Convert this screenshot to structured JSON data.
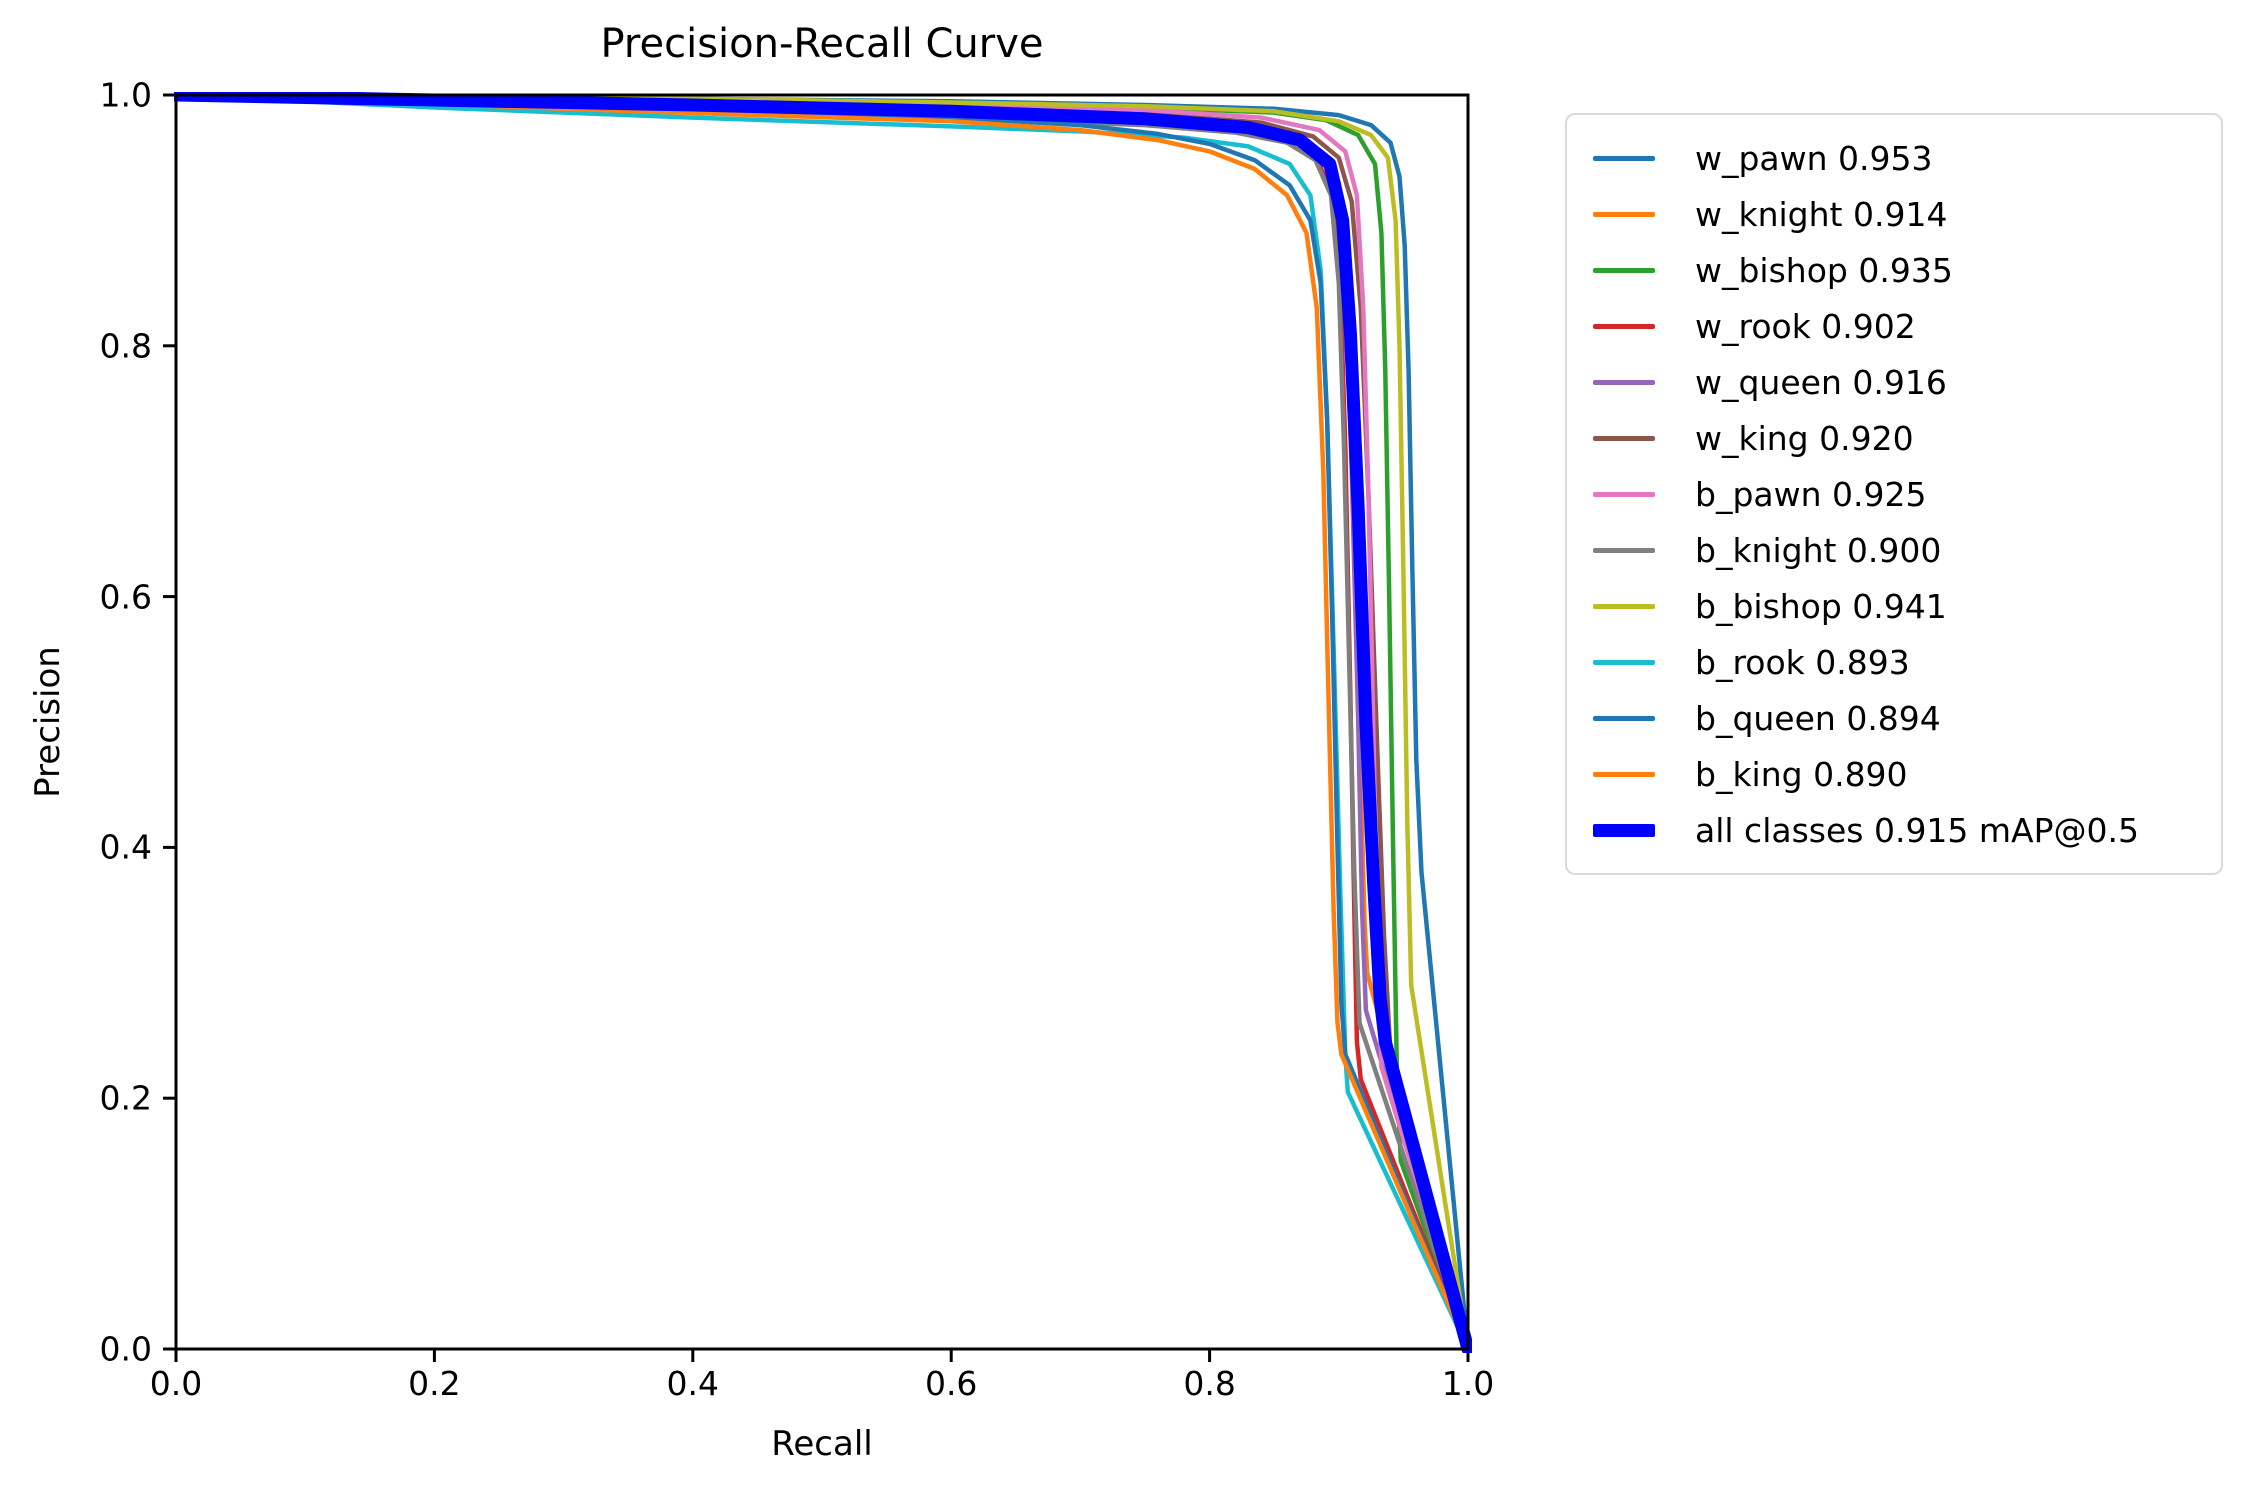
{
  "chart_data": {
    "type": "line",
    "title": "Precision-Recall Curve",
    "xlabel": "Recall",
    "ylabel": "Precision",
    "xlim": [
      0.0,
      1.0
    ],
    "ylim": [
      0.0,
      1.0
    ],
    "xticks": [
      "0.0",
      "0.2",
      "0.4",
      "0.6",
      "0.8",
      "1.0"
    ],
    "yticks": [
      "0.0",
      "0.2",
      "0.4",
      "0.6",
      "0.8",
      "1.0"
    ],
    "grid": false,
    "legend_position": "outside-right",
    "mean_ap_summary": "all classes 0.915 mAP@0.5",
    "series": [
      {
        "name": "w_pawn",
        "ap": 0.953,
        "label": "w_pawn 0.953",
        "color": "#1f77b4",
        "linewidth": 4.5,
        "points": [
          [
            0,
            1
          ],
          [
            0.2,
            0.999
          ],
          [
            0.4,
            0.997
          ],
          [
            0.6,
            0.995
          ],
          [
            0.75,
            0.992
          ],
          [
            0.85,
            0.989
          ],
          [
            0.9,
            0.984
          ],
          [
            0.925,
            0.976
          ],
          [
            0.94,
            0.962
          ],
          [
            0.947,
            0.935
          ],
          [
            0.951,
            0.88
          ],
          [
            0.954,
            0.78
          ],
          [
            0.957,
            0.62
          ],
          [
            0.96,
            0.47
          ],
          [
            0.964,
            0.38
          ],
          [
            1,
            0
          ]
        ]
      },
      {
        "name": "w_knight",
        "ap": 0.914,
        "label": "w_knight 0.914",
        "color": "#ff7f0e",
        "linewidth": 4.5,
        "points": [
          [
            0,
            1
          ],
          [
            0.2,
            0.995
          ],
          [
            0.4,
            0.99
          ],
          [
            0.6,
            0.985
          ],
          [
            0.75,
            0.98
          ],
          [
            0.82,
            0.975
          ],
          [
            0.86,
            0.968
          ],
          [
            0.885,
            0.955
          ],
          [
            0.9,
            0.93
          ],
          [
            0.906,
            0.88
          ],
          [
            0.91,
            0.78
          ],
          [
            0.914,
            0.62
          ],
          [
            0.917,
            0.45
          ],
          [
            0.92,
            0.34
          ],
          [
            0.922,
            0.3
          ],
          [
            1,
            0
          ]
        ]
      },
      {
        "name": "w_bishop",
        "ap": 0.935,
        "label": "w_bishop 0.935",
        "color": "#2ca02c",
        "linewidth": 4.5,
        "points": [
          [
            0,
            1
          ],
          [
            0.2,
            0.998
          ],
          [
            0.4,
            0.996
          ],
          [
            0.6,
            0.993
          ],
          [
            0.75,
            0.99
          ],
          [
            0.85,
            0.986
          ],
          [
            0.89,
            0.98
          ],
          [
            0.915,
            0.968
          ],
          [
            0.928,
            0.945
          ],
          [
            0.933,
            0.89
          ],
          [
            0.936,
            0.78
          ],
          [
            0.939,
            0.6
          ],
          [
            0.942,
            0.4
          ],
          [
            0.945,
            0.22
          ],
          [
            0.948,
            0.15
          ],
          [
            1,
            0
          ]
        ]
      },
      {
        "name": "w_rook",
        "ap": 0.902,
        "label": "w_rook 0.902",
        "color": "#d62728",
        "linewidth": 4.5,
        "points": [
          [
            0,
            1
          ],
          [
            0.2,
            0.996
          ],
          [
            0.4,
            0.991
          ],
          [
            0.6,
            0.986
          ],
          [
            0.75,
            0.981
          ],
          [
            0.82,
            0.975
          ],
          [
            0.86,
            0.967
          ],
          [
            0.882,
            0.952
          ],
          [
            0.895,
            0.92
          ],
          [
            0.901,
            0.85
          ],
          [
            0.905,
            0.72
          ],
          [
            0.909,
            0.52
          ],
          [
            0.912,
            0.35
          ],
          [
            0.914,
            0.245
          ],
          [
            0.917,
            0.215
          ],
          [
            1,
            0
          ]
        ]
      },
      {
        "name": "w_queen",
        "ap": 0.916,
        "label": "w_queen 0.916",
        "color": "#9467bd",
        "linewidth": 4.5,
        "points": [
          [
            0,
            1
          ],
          [
            0.2,
            0.997
          ],
          [
            0.4,
            0.993
          ],
          [
            0.6,
            0.988
          ],
          [
            0.75,
            0.983
          ],
          [
            0.83,
            0.976
          ],
          [
            0.87,
            0.965
          ],
          [
            0.89,
            0.95
          ],
          [
            0.9,
            0.915
          ],
          [
            0.906,
            0.83
          ],
          [
            0.91,
            0.7
          ],
          [
            0.915,
            0.5
          ],
          [
            0.918,
            0.35
          ],
          [
            0.921,
            0.27
          ],
          [
            1,
            0
          ]
        ]
      },
      {
        "name": "w_king",
        "ap": 0.92,
        "label": "w_king 0.920",
        "color": "#8c564b",
        "linewidth": 4.5,
        "points": [
          [
            0,
            1
          ],
          [
            0.2,
            0.997
          ],
          [
            0.4,
            0.994
          ],
          [
            0.6,
            0.99
          ],
          [
            0.75,
            0.985
          ],
          [
            0.84,
            0.978
          ],
          [
            0.88,
            0.967
          ],
          [
            0.9,
            0.95
          ],
          [
            0.91,
            0.915
          ],
          [
            0.917,
            0.83
          ],
          [
            0.923,
            0.68
          ],
          [
            0.929,
            0.5
          ],
          [
            0.935,
            0.33
          ],
          [
            0.94,
            0.235
          ],
          [
            1,
            0
          ]
        ]
      },
      {
        "name": "b_pawn",
        "ap": 0.925,
        "label": "b_pawn 0.925",
        "color": "#e377c2",
        "linewidth": 4.5,
        "points": [
          [
            0,
            1
          ],
          [
            0.2,
            0.998
          ],
          [
            0.4,
            0.996
          ],
          [
            0.6,
            0.992
          ],
          [
            0.75,
            0.988
          ],
          [
            0.84,
            0.982
          ],
          [
            0.885,
            0.972
          ],
          [
            0.905,
            0.955
          ],
          [
            0.914,
            0.92
          ],
          [
            0.919,
            0.83
          ],
          [
            0.923,
            0.68
          ],
          [
            0.927,
            0.48
          ],
          [
            0.93,
            0.32
          ],
          [
            0.933,
            0.225
          ],
          [
            1,
            0
          ]
        ]
      },
      {
        "name": "b_knight",
        "ap": 0.9,
        "label": "b_knight 0.900",
        "color": "#7f7f7f",
        "linewidth": 4.5,
        "points": [
          [
            0,
            1
          ],
          [
            0.2,
            0.994
          ],
          [
            0.4,
            0.988
          ],
          [
            0.6,
            0.982
          ],
          [
            0.75,
            0.976
          ],
          [
            0.82,
            0.97
          ],
          [
            0.86,
            0.962
          ],
          [
            0.882,
            0.948
          ],
          [
            0.894,
            0.92
          ],
          [
            0.9,
            0.85
          ],
          [
            0.904,
            0.72
          ],
          [
            0.908,
            0.55
          ],
          [
            0.912,
            0.38
          ],
          [
            0.916,
            0.26
          ],
          [
            1,
            0
          ]
        ]
      },
      {
        "name": "b_bishop",
        "ap": 0.941,
        "label": "b_bishop 0.941",
        "color": "#bcbd22",
        "linewidth": 4.5,
        "points": [
          [
            0,
            1
          ],
          [
            0.2,
            0.998
          ],
          [
            0.4,
            0.997
          ],
          [
            0.6,
            0.994
          ],
          [
            0.75,
            0.991
          ],
          [
            0.85,
            0.987
          ],
          [
            0.9,
            0.979
          ],
          [
            0.925,
            0.968
          ],
          [
            0.938,
            0.95
          ],
          [
            0.944,
            0.9
          ],
          [
            0.947,
            0.8
          ],
          [
            0.95,
            0.62
          ],
          [
            0.953,
            0.42
          ],
          [
            0.956,
            0.29
          ],
          [
            1,
            0
          ]
        ]
      },
      {
        "name": "b_rook",
        "ap": 0.893,
        "label": "b_rook 0.893",
        "color": "#17becf",
        "linewidth": 4.5,
        "points": [
          [
            0,
            1
          ],
          [
            0.2,
            0.99
          ],
          [
            0.4,
            0.982
          ],
          [
            0.6,
            0.975
          ],
          [
            0.7,
            0.971
          ],
          [
            0.78,
            0.966
          ],
          [
            0.83,
            0.959
          ],
          [
            0.862,
            0.945
          ],
          [
            0.878,
            0.92
          ],
          [
            0.886,
            0.86
          ],
          [
            0.891,
            0.74
          ],
          [
            0.896,
            0.56
          ],
          [
            0.901,
            0.37
          ],
          [
            0.905,
            0.235
          ],
          [
            0.907,
            0.205
          ],
          [
            1,
            0
          ]
        ]
      },
      {
        "name": "b_queen",
        "ap": 0.894,
        "label": "b_queen 0.894",
        "color": "#1f77b4",
        "linewidth": 4.5,
        "points": [
          [
            0,
            1
          ],
          [
            0.15,
            0.996
          ],
          [
            0.3,
            0.991
          ],
          [
            0.45,
            0.987
          ],
          [
            0.6,
            0.982
          ],
          [
            0.7,
            0.976
          ],
          [
            0.76,
            0.969
          ],
          [
            0.8,
            0.961
          ],
          [
            0.835,
            0.948
          ],
          [
            0.862,
            0.928
          ],
          [
            0.878,
            0.9
          ],
          [
            0.886,
            0.85
          ],
          [
            0.891,
            0.74
          ],
          [
            0.895,
            0.58
          ],
          [
            0.899,
            0.4
          ],
          [
            0.902,
            0.275
          ],
          [
            0.905,
            0.235
          ],
          [
            1,
            0
          ]
        ]
      },
      {
        "name": "b_king",
        "ap": 0.89,
        "label": "b_king 0.890",
        "color": "#ff7f0e",
        "linewidth": 4.5,
        "points": [
          [
            0,
            1
          ],
          [
            0.15,
            0.995
          ],
          [
            0.3,
            0.989
          ],
          [
            0.45,
            0.984
          ],
          [
            0.6,
            0.979
          ],
          [
            0.7,
            0.972
          ],
          [
            0.76,
            0.964
          ],
          [
            0.8,
            0.955
          ],
          [
            0.835,
            0.941
          ],
          [
            0.86,
            0.92
          ],
          [
            0.875,
            0.89
          ],
          [
            0.883,
            0.83
          ],
          [
            0.888,
            0.7
          ],
          [
            0.892,
            0.52
          ],
          [
            0.896,
            0.35
          ],
          [
            0.899,
            0.26
          ],
          [
            0.902,
            0.235
          ],
          [
            1,
            0
          ]
        ]
      },
      {
        "name": "all_classes",
        "ap": 0.915,
        "label": "all classes 0.915 mAP@0.5",
        "color": "#0000ff",
        "linewidth": 13,
        "points": [
          [
            0,
            1
          ],
          [
            0.2,
            0.996
          ],
          [
            0.4,
            0.992
          ],
          [
            0.6,
            0.987
          ],
          [
            0.75,
            0.981
          ],
          [
            0.83,
            0.974
          ],
          [
            0.87,
            0.964
          ],
          [
            0.893,
            0.945
          ],
          [
            0.903,
            0.9
          ],
          [
            0.909,
            0.81
          ],
          [
            0.915,
            0.67
          ],
          [
            0.921,
            0.5
          ],
          [
            0.927,
            0.37
          ],
          [
            0.932,
            0.28
          ],
          [
            0.936,
            0.245
          ],
          [
            1,
            0
          ]
        ]
      }
    ]
  }
}
